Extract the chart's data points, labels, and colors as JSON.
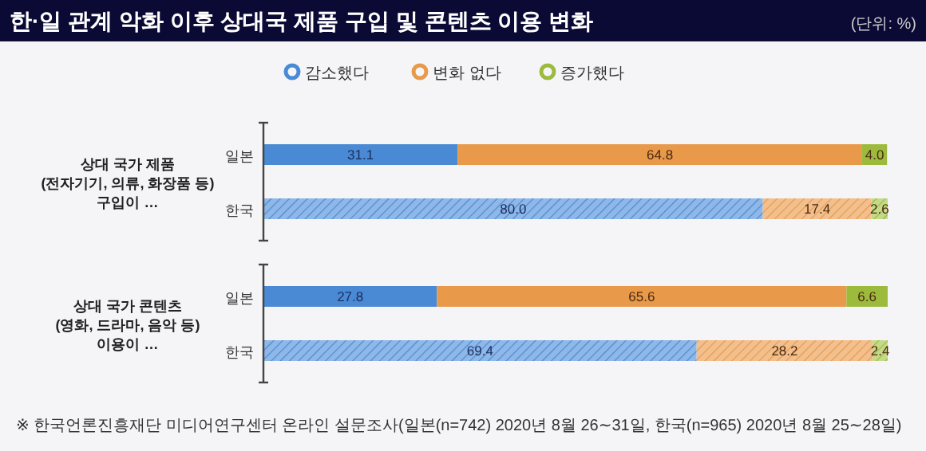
{
  "chart_data": {
    "type": "bar",
    "orientation": "horizontal",
    "stacked": true,
    "title": "한·일 관계 악화 이후 상대국 제품 구입 및 콘텐츠 이용 변화",
    "categories": [
      "일본",
      "한국",
      "일본",
      "한국"
    ],
    "series": [
      {
        "name": "감소했다",
        "color": "#4a8ad4",
        "colors": [
          "#4a8ad4",
          "#8fb8e8",
          "#4a8ad4",
          "#8fb8e8"
        ],
        "values": [
          31.1,
          80.0,
          27.8,
          69.4
        ],
        "value_labels": [
          "31.1",
          "80.0",
          "27.8",
          "69.4"
        ]
      },
      {
        "name": "변화 없다",
        "color": "#e8994a",
        "colors": [
          "#e8994a",
          "#f2c08e",
          "#e8994a",
          "#f2c08e"
        ],
        "values": [
          64.8,
          17.4,
          65.6,
          28.2
        ],
        "value_labels": [
          "64.8",
          "17.4",
          "65.6",
          "28.2"
        ]
      },
      {
        "name": "증가했다",
        "color": "#9cbb3c",
        "colors": [
          "#9cbb3c",
          "#c4da8a",
          "#9cbb3c",
          "#c4da8a"
        ],
        "values": [
          4.0,
          2.6,
          6.6,
          2.4
        ],
        "value_labels": [
          "4.0",
          "2.6",
          "6.6",
          "2.4"
        ]
      }
    ],
    "xlim": [
      0,
      100
    ],
    "legend": "top",
    "annotations": [
      "(단위: %)",
      "상대 국가 제품\n(전자기기, 의류, 화장품 등)\n구입이 …",
      "상대 국가 콘텐츠\n(영화, 드라마, 음악 등)\n이용이 …",
      "※ 한국언론진흥재단 미디어연구센터 온라인 설문조사(일본(n=742) 2020년 8월 26∼31일, 한국(n=965) 2020년 8월 25∼28일)"
    ]
  }
}
